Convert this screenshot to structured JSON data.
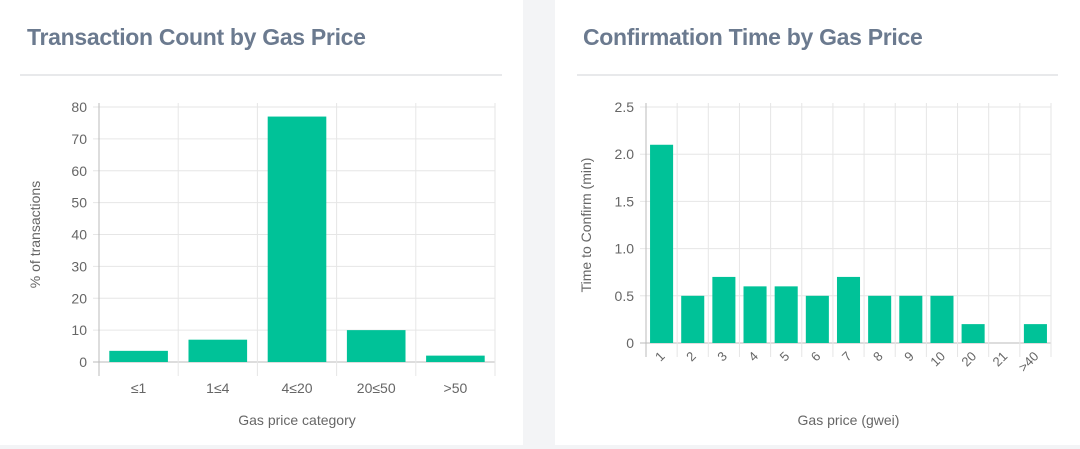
{
  "colors": {
    "bar": "#00c298",
    "grid": "#e6e6e6",
    "axis": "#bbbbbb",
    "title": "#6b7a8f"
  },
  "chart_data": [
    {
      "type": "bar",
      "title": "Transaction Count by Gas Price",
      "xlabel": "Gas price category",
      "ylabel": "% of transactions",
      "categories": [
        "≤1",
        "1≤4",
        "4≤20",
        "20≤50",
        ">50"
      ],
      "values": [
        3.5,
        7,
        77,
        10,
        2
      ],
      "ylim": [
        0,
        80
      ],
      "yticks": [
        "0",
        "10",
        "20",
        "30",
        "40",
        "50",
        "60",
        "70",
        "80"
      ],
      "grid": true
    },
    {
      "type": "bar",
      "title": "Confirmation Time by Gas Price",
      "xlabel": "Gas price (gwei)",
      "ylabel": "Time to Confirm (min)",
      "categories": [
        "1",
        "2",
        "3",
        "4",
        "5",
        "6",
        "7",
        "8",
        "9",
        "10",
        "20",
        "21",
        ">40"
      ],
      "values": [
        2.1,
        0.5,
        0.7,
        0.6,
        0.6,
        0.5,
        0.7,
        0.5,
        0.5,
        0.5,
        0.2,
        0,
        0.2
      ],
      "ylim": [
        0,
        2.5
      ],
      "yticks": [
        "0",
        "0.5",
        "1.0",
        "1.5",
        "2.0",
        "2.5"
      ],
      "grid": true,
      "xtick_rotation": -45
    }
  ]
}
